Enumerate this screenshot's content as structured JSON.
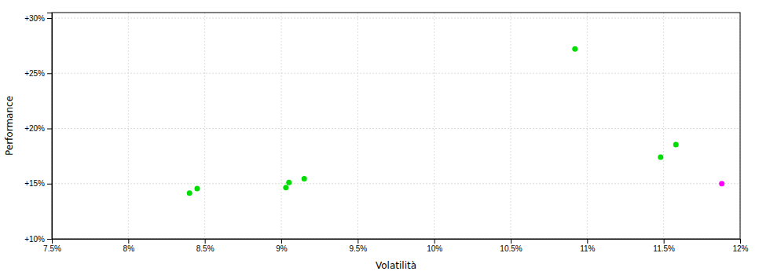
{
  "chart_data": {
    "type": "scatter",
    "xlabel": "Volatilità",
    "ylabel": "Performance",
    "x": [
      0.0845,
      0.084,
      0.0905,
      0.0915,
      0.0903,
      0.1092,
      0.1148,
      0.1158,
      0.1188
    ],
    "values": [
      0.1455,
      0.1415,
      0.151,
      0.1545,
      0.1465,
      0.272,
      0.174,
      0.1855,
      0.15
    ],
    "colors": [
      "#00dd00",
      "#00dd00",
      "#00dd00",
      "#00dd00",
      "#00dd00",
      "#00dd00",
      "#00dd00",
      "#00dd00",
      "#ff00ff"
    ],
    "xlim": [
      0.075,
      0.12
    ],
    "ylim": [
      0.1,
      0.305
    ],
    "xticks": [
      {
        "value": 0.075,
        "label": "7.5%"
      },
      {
        "value": 0.08,
        "label": "8%"
      },
      {
        "value": 0.085,
        "label": "8.5%"
      },
      {
        "value": 0.09,
        "label": "9%"
      },
      {
        "value": 0.095,
        "label": "9.5%"
      },
      {
        "value": 0.1,
        "label": "10%"
      },
      {
        "value": 0.105,
        "label": "10.5%"
      },
      {
        "value": 0.11,
        "label": "11%"
      },
      {
        "value": 0.115,
        "label": "11.5%"
      },
      {
        "value": 0.12,
        "label": "12%"
      }
    ],
    "yticks": [
      {
        "value": 0.1,
        "label": "+10%"
      },
      {
        "value": 0.15,
        "label": "+15%"
      },
      {
        "value": 0.2,
        "label": "+20%"
      },
      {
        "value": 0.25,
        "label": "+25%"
      },
      {
        "value": 0.3,
        "label": "+30%"
      }
    ],
    "grid": true
  }
}
